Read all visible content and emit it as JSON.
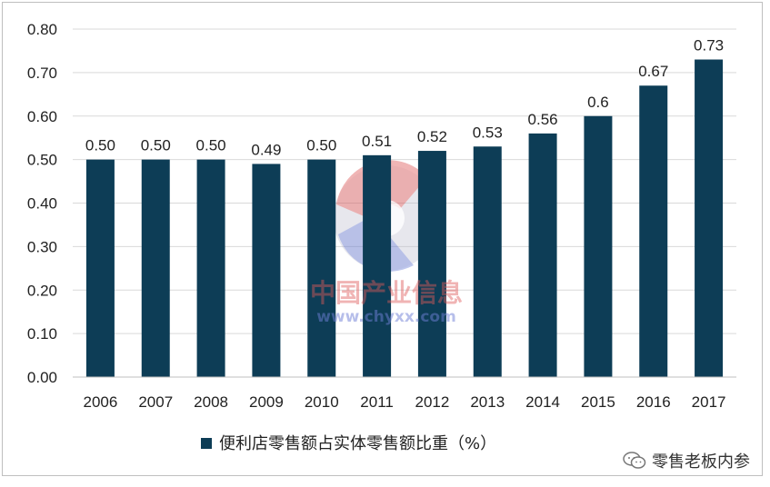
{
  "chart_data": {
    "type": "bar",
    "categories": [
      "2006",
      "2007",
      "2008",
      "2009",
      "2010",
      "2011",
      "2012",
      "2013",
      "2014",
      "2015",
      "2016",
      "2017"
    ],
    "values": [
      0.5,
      0.5,
      0.5,
      0.49,
      0.5,
      0.51,
      0.52,
      0.53,
      0.56,
      0.6,
      0.67,
      0.73
    ],
    "data_labels": [
      "0.50",
      "0.50",
      "0.50",
      "0.49",
      "0.50",
      "0.51",
      "0.52",
      "0.53",
      "0.56",
      "0.6",
      "0.67",
      "0.73"
    ],
    "yticks": [
      "0.00",
      "0.10",
      "0.20",
      "0.30",
      "0.40",
      "0.50",
      "0.60",
      "0.70",
      "0.80"
    ],
    "ylim": [
      0,
      0.8
    ],
    "ystep": 0.1,
    "grid": true,
    "legend": {
      "position": "bottom",
      "label": "便利店零售额占实体零售额比重（%）"
    },
    "colors": {
      "bar": "#0d3d56",
      "grid": "#d9d9d9"
    },
    "title": "",
    "xlabel": "",
    "ylabel": ""
  },
  "watermark": {
    "name": "中国产业信息",
    "url": "www.chyxx.com"
  },
  "source_tag": {
    "text": "零售老板内参",
    "icon": "wechat-icon"
  }
}
